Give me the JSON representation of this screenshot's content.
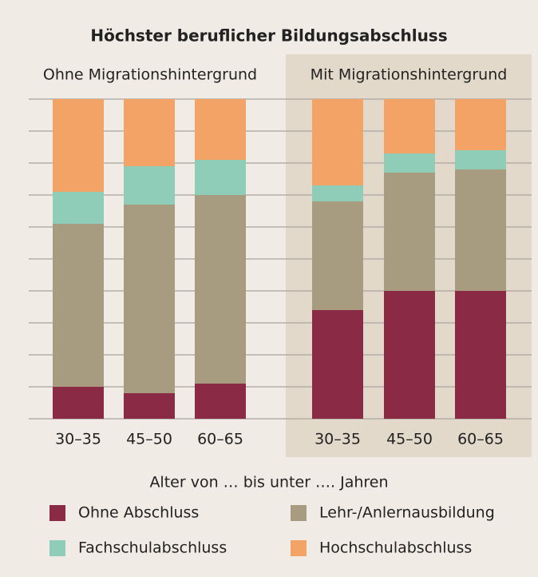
{
  "chart_data": {
    "type": "bar",
    "stacked": true,
    "title": "Höchster beruflicher Bildungsabschluss",
    "xlabel": "Alter von … bis unter …. Jahren",
    "ylim": [
      0,
      100
    ],
    "yticks": [
      0,
      10,
      20,
      30,
      40,
      50,
      60,
      70,
      80,
      90,
      100
    ],
    "grid": true,
    "series": [
      {
        "name": "Ohne Abschluss",
        "color": "#8b2a45"
      },
      {
        "name": "Lehr-/Anlernausbildung",
        "color": "#a89c80"
      },
      {
        "name": "Fachschulabschluss",
        "color": "#8fcdb9"
      },
      {
        "name": "Hochschulabschluss",
        "color": "#f4a366"
      }
    ],
    "panels": [
      {
        "subtitle": "Ohne Migrationshintergrund",
        "categories": [
          "30–35",
          "45–50",
          "60–65"
        ],
        "values": [
          [
            10,
            8,
            11
          ],
          [
            51,
            59,
            59
          ],
          [
            10,
            12,
            11
          ],
          [
            29,
            21,
            19
          ]
        ]
      },
      {
        "subtitle": "Mit Migrationshintergrund",
        "categories": [
          "30–35",
          "45–50",
          "60–65"
        ],
        "values": [
          [
            34,
            40,
            40
          ],
          [
            34,
            37,
            38
          ],
          [
            5,
            6,
            6
          ],
          [
            27,
            17,
            16
          ]
        ]
      }
    ]
  }
}
